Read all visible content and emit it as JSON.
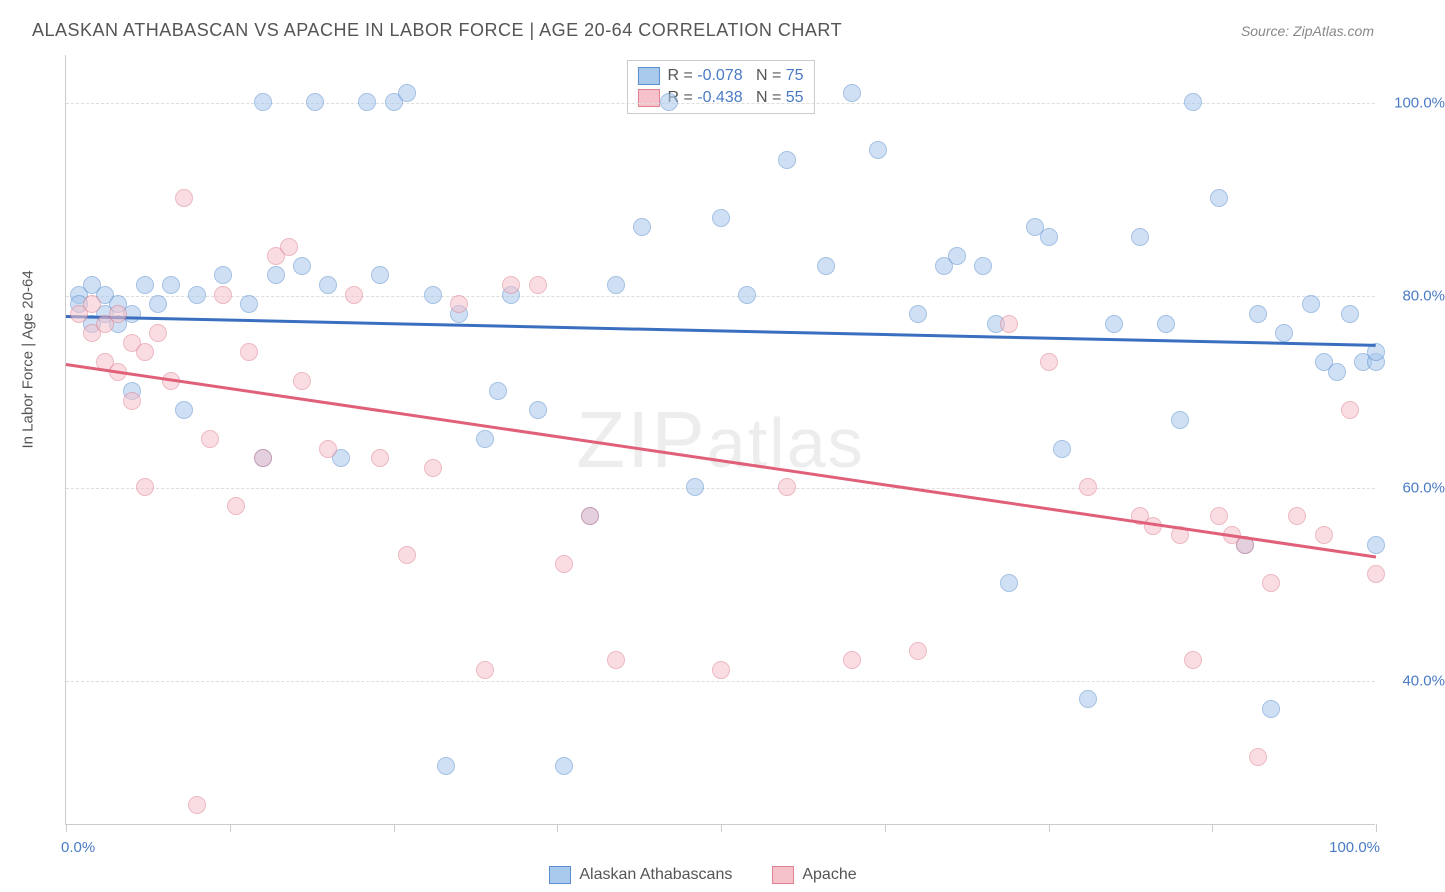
{
  "title": "ALASKAN ATHABASCAN VS APACHE IN LABOR FORCE | AGE 20-64 CORRELATION CHART",
  "source": "Source: ZipAtlas.com",
  "y_axis_label": "In Labor Force | Age 20-64",
  "watermark": "ZIPatlas",
  "chart": {
    "type": "scatter",
    "xlim": [
      0,
      100
    ],
    "ylim": [
      25,
      105
    ],
    "x_ticks": [
      0,
      12.5,
      25,
      37.5,
      50,
      62.5,
      75,
      87.5,
      100
    ],
    "x_tick_labels": {
      "0": "0.0%",
      "100": "100.0%"
    },
    "y_gridlines": [
      40,
      60,
      80,
      100
    ],
    "y_tick_labels": {
      "40": "40.0%",
      "60": "60.0%",
      "80": "80.0%",
      "100": "100.0%"
    },
    "background_color": "#ffffff",
    "grid_color": "#dddddd",
    "axis_color": "#cccccc",
    "label_color": "#4a7bc4",
    "series": [
      {
        "name": "Alaskan Athabascans",
        "fill_color": "#a8c8ec",
        "stroke_color": "#5a8fd0",
        "line_color": "#3a6fc0",
        "R": "-0.078",
        "N": "75",
        "trend": {
          "x1": 0,
          "y1": 78,
          "x2": 100,
          "y2": 75
        },
        "points": [
          [
            1,
            80
          ],
          [
            1,
            79
          ],
          [
            2,
            81
          ],
          [
            2,
            77
          ],
          [
            3,
            78
          ],
          [
            3,
            80
          ],
          [
            4,
            79
          ],
          [
            4,
            77
          ],
          [
            5,
            78
          ],
          [
            5,
            70
          ],
          [
            6,
            81
          ],
          [
            7,
            79
          ],
          [
            8,
            81
          ],
          [
            9,
            68
          ],
          [
            10,
            80
          ],
          [
            12,
            82
          ],
          [
            14,
            79
          ],
          [
            15,
            63
          ],
          [
            15,
            100
          ],
          [
            16,
            82
          ],
          [
            18,
            83
          ],
          [
            19,
            100
          ],
          [
            20,
            81
          ],
          [
            21,
            63
          ],
          [
            23,
            100
          ],
          [
            24,
            82
          ],
          [
            25,
            100
          ],
          [
            26,
            101
          ],
          [
            28,
            80
          ],
          [
            29,
            31
          ],
          [
            30,
            78
          ],
          [
            32,
            65
          ],
          [
            33,
            70
          ],
          [
            34,
            80
          ],
          [
            36,
            68
          ],
          [
            38,
            31
          ],
          [
            40,
            57
          ],
          [
            42,
            81
          ],
          [
            44,
            87
          ],
          [
            46,
            100
          ],
          [
            48,
            60
          ],
          [
            50,
            88
          ],
          [
            52,
            80
          ],
          [
            55,
            94
          ],
          [
            58,
            83
          ],
          [
            60,
            101
          ],
          [
            62,
            95
          ],
          [
            65,
            78
          ],
          [
            67,
            83
          ],
          [
            68,
            84
          ],
          [
            70,
            83
          ],
          [
            71,
            77
          ],
          [
            72,
            50
          ],
          [
            74,
            87
          ],
          [
            75,
            86
          ],
          [
            76,
            64
          ],
          [
            78,
            38
          ],
          [
            80,
            77
          ],
          [
            82,
            86
          ],
          [
            84,
            77
          ],
          [
            85,
            67
          ],
          [
            86,
            100
          ],
          [
            88,
            90
          ],
          [
            90,
            54
          ],
          [
            91,
            78
          ],
          [
            92,
            37
          ],
          [
            93,
            76
          ],
          [
            95,
            79
          ],
          [
            96,
            73
          ],
          [
            97,
            72
          ],
          [
            98,
            78
          ],
          [
            99,
            73
          ],
          [
            100,
            73
          ],
          [
            100,
            74
          ],
          [
            100,
            54
          ]
        ]
      },
      {
        "name": "Apache",
        "fill_color": "#f5c2cb",
        "stroke_color": "#e08090",
        "line_color": "#e0607a",
        "R": "-0.438",
        "N": "55",
        "trend": {
          "x1": 0,
          "y1": 73,
          "x2": 100,
          "y2": 53
        },
        "points": [
          [
            1,
            78
          ],
          [
            2,
            79
          ],
          [
            2,
            76
          ],
          [
            3,
            77
          ],
          [
            3,
            73
          ],
          [
            4,
            78
          ],
          [
            4,
            72
          ],
          [
            5,
            75
          ],
          [
            5,
            69
          ],
          [
            6,
            74
          ],
          [
            6,
            60
          ],
          [
            7,
            76
          ],
          [
            8,
            71
          ],
          [
            9,
            90
          ],
          [
            10,
            27
          ],
          [
            11,
            65
          ],
          [
            12,
            80
          ],
          [
            13,
            58
          ],
          [
            14,
            74
          ],
          [
            15,
            63
          ],
          [
            16,
            84
          ],
          [
            17,
            85
          ],
          [
            18,
            71
          ],
          [
            20,
            64
          ],
          [
            22,
            80
          ],
          [
            24,
            63
          ],
          [
            26,
            53
          ],
          [
            28,
            62
          ],
          [
            30,
            79
          ],
          [
            32,
            41
          ],
          [
            34,
            81
          ],
          [
            36,
            81
          ],
          [
            38,
            52
          ],
          [
            40,
            57
          ],
          [
            42,
            42
          ],
          [
            50,
            41
          ],
          [
            55,
            60
          ],
          [
            60,
            42
          ],
          [
            65,
            43
          ],
          [
            72,
            77
          ],
          [
            75,
            73
          ],
          [
            78,
            60
          ],
          [
            82,
            57
          ],
          [
            83,
            56
          ],
          [
            85,
            55
          ],
          [
            86,
            42
          ],
          [
            88,
            57
          ],
          [
            89,
            55
          ],
          [
            90,
            54
          ],
          [
            91,
            32
          ],
          [
            92,
            50
          ],
          [
            94,
            57
          ],
          [
            96,
            55
          ],
          [
            98,
            68
          ],
          [
            100,
            51
          ]
        ]
      }
    ]
  },
  "stats_box": {
    "rows": [
      {
        "series": 0,
        "text_prefix": "R = ",
        "r": "-0.078",
        "mid": "   N = ",
        "n": "75"
      },
      {
        "series": 1,
        "text_prefix": "R = ",
        "r": "-0.438",
        "mid": "   N = ",
        "n": "55"
      }
    ]
  },
  "legend": {
    "items": [
      {
        "series": 0,
        "label": "Alaskan Athabascans"
      },
      {
        "series": 1,
        "label": "Apache"
      }
    ]
  }
}
